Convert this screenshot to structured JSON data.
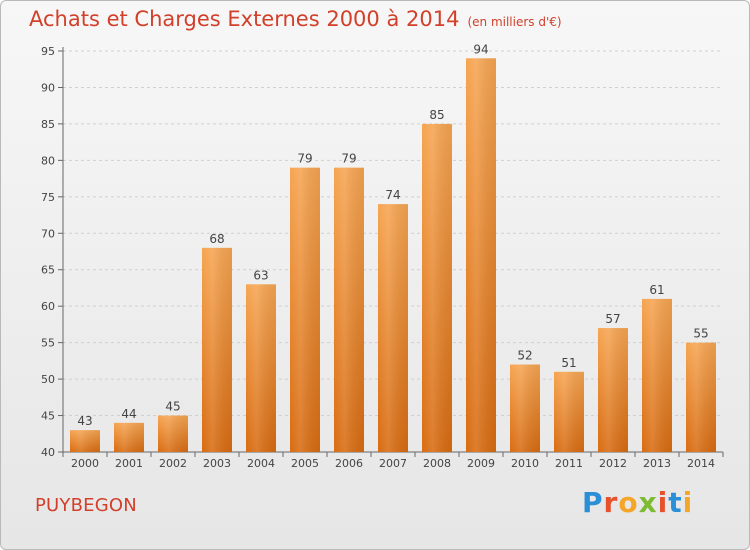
{
  "header": {
    "title": "Achats et Charges Externes 2000 à 2014",
    "subtitle": "(en milliers d'€)"
  },
  "footer": {
    "commune": "PUYBEGON",
    "logo_letters": [
      "P",
      "r",
      "o",
      "x",
      "i",
      "t",
      "i"
    ],
    "logo_colors": [
      "#2b8fd8",
      "#e7522d",
      "#f4a629",
      "#7dbb32",
      "#e7522d",
      "#2b8fd8",
      "#f4a629"
    ]
  },
  "chart_data": {
    "type": "bar",
    "title": "Achats et Charges Externes 2000 à 2014",
    "categories": [
      "2000",
      "2001",
      "2002",
      "2003",
      "2004",
      "2005",
      "2006",
      "2007",
      "2008",
      "2009",
      "2010",
      "2011",
      "2012",
      "2013",
      "2014"
    ],
    "values": [
      43,
      44,
      45,
      68,
      63,
      79,
      79,
      74,
      85,
      94,
      52,
      51,
      57,
      61,
      55
    ],
    "ylim": [
      40,
      95
    ],
    "yticks": [
      40,
      45,
      50,
      55,
      60,
      65,
      70,
      75,
      80,
      85,
      90,
      95
    ],
    "grid": true,
    "bar_color": "#f39c45"
  }
}
